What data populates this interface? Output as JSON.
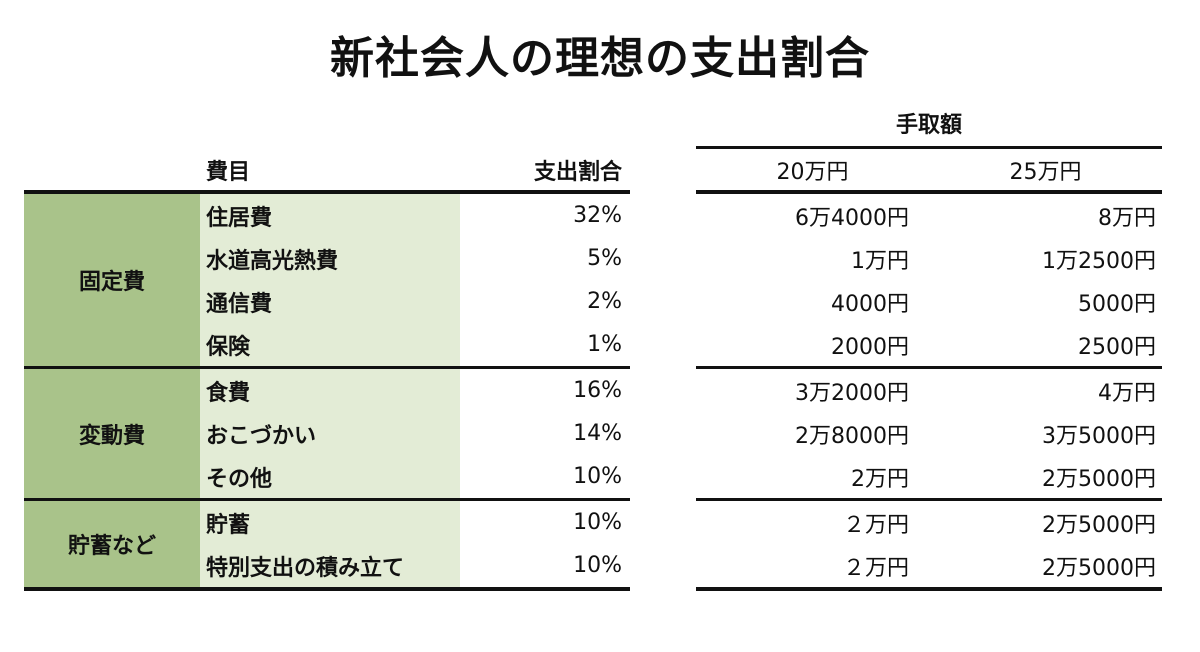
{
  "title": "新社会人の理想の支出割合",
  "headers": {
    "item": "費目",
    "ratio": "支出割合",
    "takehome": "手取額",
    "col20": "20万円",
    "col25": "25万円"
  },
  "groups": [
    {
      "category": "固定費",
      "rows": [
        {
          "item": "住居費",
          "ratio": "32%",
          "v20": "6万4000円",
          "v25": "8万円"
        },
        {
          "item": "水道高光熱費",
          "ratio": "5%",
          "v20": "1万円",
          "v25": "1万2500円"
        },
        {
          "item": "通信費",
          "ratio": "2%",
          "v20": "4000円",
          "v25": "5000円"
        },
        {
          "item": "保険",
          "ratio": "1%",
          "v20": "2000円",
          "v25": "2500円"
        }
      ]
    },
    {
      "category": "変動費",
      "rows": [
        {
          "item": "食費",
          "ratio": "16%",
          "v20": "3万2000円",
          "v25": "4万円"
        },
        {
          "item": "おこづかい",
          "ratio": "14%",
          "v20": "2万8000円",
          "v25": "3万5000円"
        },
        {
          "item": "その他",
          "ratio": "10%",
          "v20": "2万円",
          "v25": "2万5000円"
        }
      ]
    },
    {
      "category": "貯蓄など",
      "rows": [
        {
          "item": "貯蓄",
          "ratio": "10%",
          "v20": "２万円",
          "v25": "2万5000円"
        },
        {
          "item": "特別支出の積み立て",
          "ratio": "10%",
          "v20": "２万円",
          "v25": "2万5000円"
        }
      ]
    }
  ]
}
